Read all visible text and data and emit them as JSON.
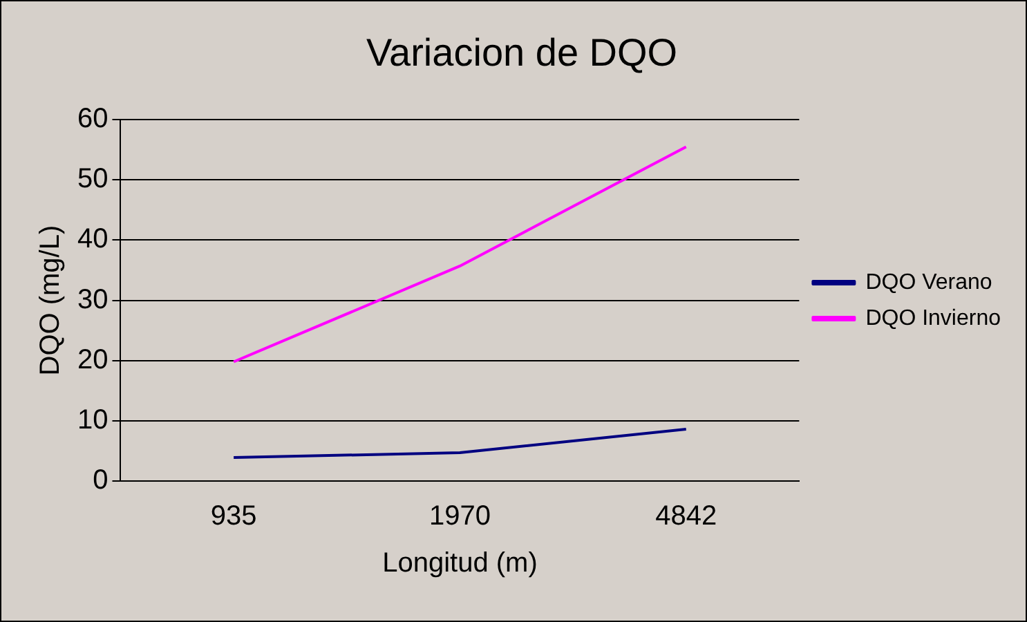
{
  "chart_data": {
    "type": "line",
    "title": "Variacion de DQO",
    "xlabel": "Longitud (m)",
    "ylabel": "DQO (mg/L)",
    "categories": [
      "935",
      "1970",
      "4842"
    ],
    "series": [
      {
        "name": "DQO Verano",
        "color": "#000080",
        "values": [
          3.9,
          4.7,
          8.6
        ]
      },
      {
        "name": "DQO Invierno",
        "color": "#ff00ff",
        "values": [
          19.8,
          35.7,
          55.5
        ]
      }
    ],
    "ylim": [
      0,
      60
    ],
    "yticks": [
      0,
      10,
      20,
      30,
      40,
      50,
      60
    ],
    "grid": "y",
    "legend": "right",
    "marker": "none",
    "line_style": "solid"
  }
}
